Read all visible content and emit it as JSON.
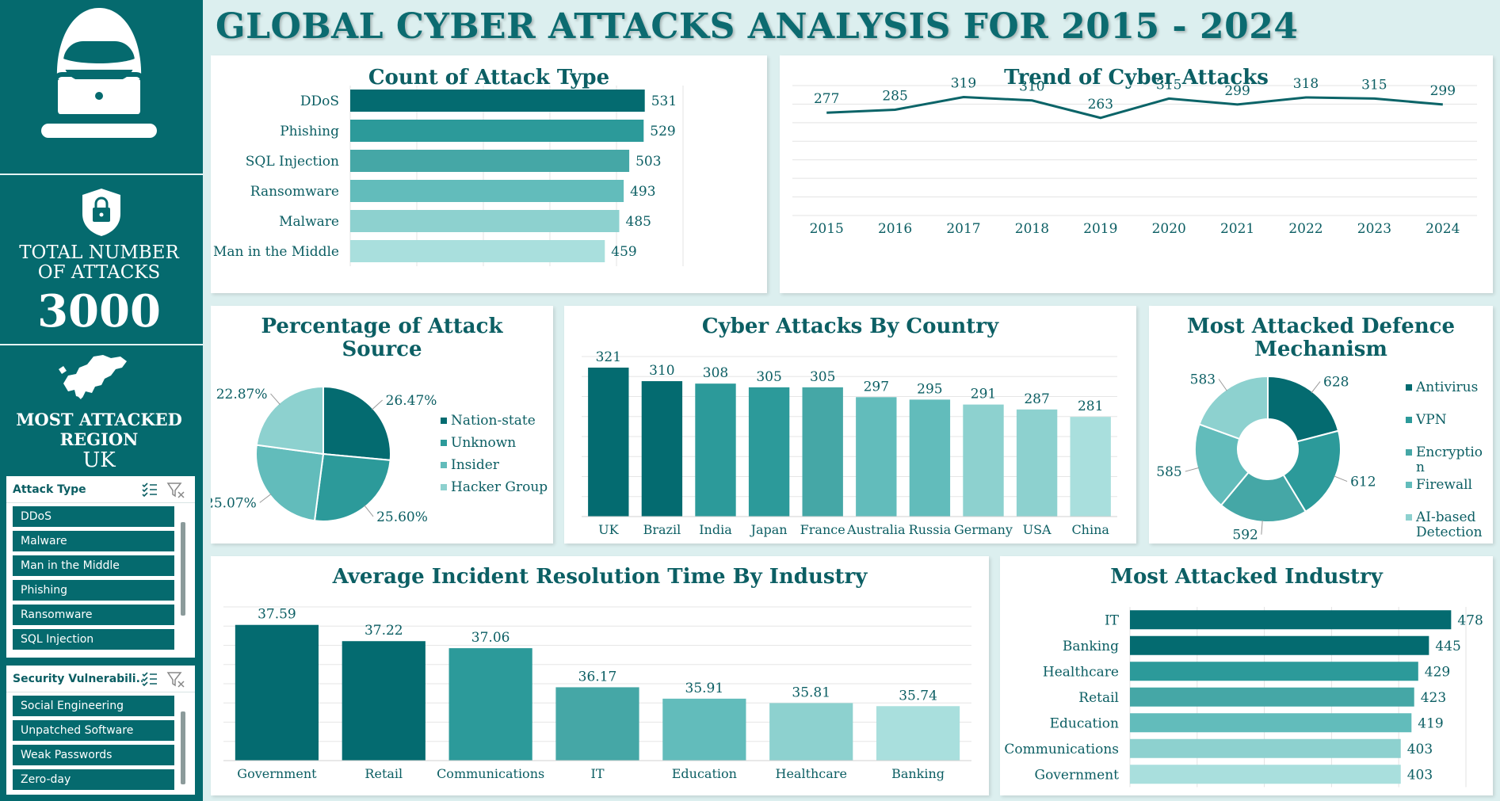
{
  "dashboard_title": "GLOBAL CYBER ATTACKS ANALYSIS FOR 2015 - 2024",
  "colors": {
    "sidebar": "#056a6e",
    "shades": [
      "#046b70",
      "#2c9a9a",
      "#45a7a6",
      "#62bcbb",
      "#8dd1cf",
      "#a9dfdd"
    ]
  },
  "sidebar": {
    "hacker_icon": "hacker-laptop-icon",
    "lock_icon": "lock-shield-icon",
    "map_icon": "europe-map-icon",
    "total_label_line1": "TOTAL NUMBER",
    "total_label_line2": "OF ATTACKS",
    "total_value": "3000",
    "region_label_line1": "MOST ATTACKED",
    "region_label_line2": "REGION",
    "region_value": "UK"
  },
  "slicers": [
    {
      "title": "Attack Type",
      "items": [
        "DDoS",
        "Malware",
        "Man in the Middle",
        "Phishing",
        "Ransomware",
        "SQL Injection"
      ]
    },
    {
      "title": "Security Vulnerabili...",
      "items": [
        "Social Engineering",
        "Unpatched Software",
        "Weak Passwords",
        "Zero-day"
      ]
    }
  ],
  "chart_data": [
    {
      "id": "attack_type",
      "type": "bar",
      "orientation": "horizontal",
      "title": "Count of Attack Type",
      "categories": [
        "DDoS",
        "Phishing",
        "SQL Injection",
        "Ransomware",
        "Malware",
        "Man in the Middle"
      ],
      "values": [
        531,
        529,
        503,
        493,
        485,
        459
      ],
      "xlim": [
        0,
        600
      ],
      "grid": true
    },
    {
      "id": "trend",
      "type": "line",
      "title": "Trend of Cyber Attacks",
      "x": [
        "2015",
        "2016",
        "2017",
        "2018",
        "2019",
        "2020",
        "2021",
        "2022",
        "2023",
        "2024"
      ],
      "values": [
        277,
        285,
        319,
        310,
        263,
        315,
        299,
        318,
        315,
        299
      ],
      "ylim": [
        0,
        350
      ],
      "grid": true
    },
    {
      "id": "attack_source",
      "type": "pie",
      "title_line1": "Percentage of Attack",
      "title_line2": "Source",
      "categories": [
        "Nation-state",
        "Unknown",
        "Insider",
        "Hacker Group"
      ],
      "labels": [
        "26.47%",
        "25.60%",
        "25.07%",
        "22.87%"
      ],
      "values": [
        26.47,
        25.6,
        25.07,
        22.87
      ],
      "legend": "right"
    },
    {
      "id": "country",
      "type": "bar",
      "title": "Cyber Attacks By Country",
      "categories": [
        "UK",
        "Brazil",
        "India",
        "Japan",
        "France",
        "Australia",
        "Russia",
        "Germany",
        "USA",
        "China"
      ],
      "values": [
        321,
        310,
        308,
        305,
        305,
        297,
        295,
        291,
        287,
        281
      ],
      "ylim": [
        200,
        330
      ],
      "grid": true
    },
    {
      "id": "defence",
      "type": "pie",
      "donut": true,
      "title_line1": "Most Attacked Defence",
      "title_line2": "Mechanism",
      "categories": [
        "Antivirus",
        "VPN",
        "Encryption",
        "Firewall",
        "AI-based Detection"
      ],
      "legend_lines": [
        [
          "Antivirus"
        ],
        [
          "VPN"
        ],
        [
          "Encryptio",
          "n"
        ],
        [
          "Firewall"
        ],
        [
          "AI-based",
          "Detection"
        ]
      ],
      "values": [
        628,
        612,
        592,
        585,
        583
      ],
      "legend": "right"
    },
    {
      "id": "resolution",
      "type": "bar",
      "title": "Average Incident Resolution Time By Industry",
      "categories": [
        "Government",
        "Retail",
        "Communications",
        "IT",
        "Education",
        "Healthcare",
        "Banking"
      ],
      "values": [
        37.59,
        37.22,
        37.06,
        36.17,
        35.91,
        35.81,
        35.74
      ],
      "ylim": [
        34.5,
        38
      ],
      "grid": true
    },
    {
      "id": "industry",
      "type": "bar",
      "orientation": "horizontal",
      "title": "Most Attacked Industry",
      "categories": [
        "IT",
        "Banking",
        "Healthcare",
        "Retail",
        "Education",
        "Communications",
        "Government"
      ],
      "values": [
        478,
        445,
        429,
        423,
        419,
        403,
        403
      ],
      "xlim": [
        0,
        500
      ],
      "grid": true
    }
  ]
}
